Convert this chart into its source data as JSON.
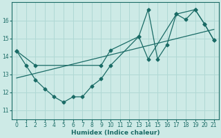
{
  "xlabel": "Humidex (Indice chaleur)",
  "xlim": [
    -0.5,
    21.5
  ],
  "ylim": [
    10.5,
    17.0
  ],
  "yticks": [
    11,
    12,
    13,
    14,
    15,
    16
  ],
  "xticks": [
    0,
    1,
    2,
    3,
    4,
    5,
    6,
    7,
    8,
    9,
    10,
    11,
    12,
    13,
    14,
    15,
    16,
    17,
    18,
    19,
    20,
    21
  ],
  "bg_color": "#cdeae6",
  "grid_color": "#b0d8d4",
  "line_color": "#1a6b66",
  "series1_x": [
    0,
    1,
    2,
    3,
    4,
    5,
    6,
    7,
    8,
    9,
    10,
    13,
    14,
    15,
    16,
    17,
    18,
    19,
    20,
    21
  ],
  "series1_y": [
    14.3,
    13.5,
    12.7,
    12.2,
    11.75,
    11.45,
    11.75,
    11.75,
    12.35,
    12.75,
    13.5,
    15.1,
    16.6,
    13.85,
    14.65,
    16.35,
    16.05,
    16.6,
    15.8,
    14.9
  ],
  "series2_x": [
    0,
    2,
    9,
    10,
    13,
    14,
    17,
    19,
    20,
    21
  ],
  "series2_y": [
    14.3,
    13.5,
    13.5,
    14.35,
    15.1,
    13.85,
    16.35,
    16.6,
    15.8,
    14.9
  ],
  "trend_x": [
    0,
    21
  ],
  "trend_y": [
    12.8,
    15.5
  ],
  "marker": "D",
  "markersize": 2.5,
  "linewidth": 0.9
}
